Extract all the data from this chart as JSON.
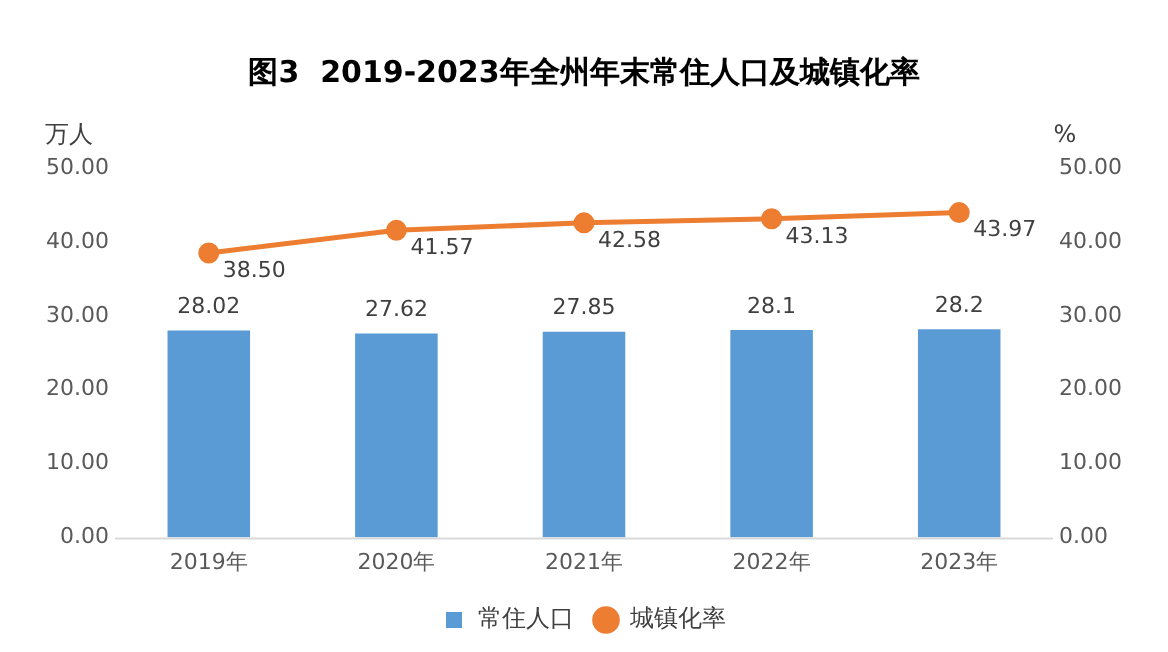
{
  "chart_data": {
    "type": "bar",
    "title": "图3  2019-2023年全州年末常住人口及城镇化率",
    "categories": [
      "2019年",
      "2020年",
      "2021年",
      "2022年",
      "2023年"
    ],
    "ylabel": "万人",
    "y2label": "%",
    "series": [
      {
        "name": "常住人口",
        "color": "#5b9bd5",
        "values": [
          28.02,
          27.62,
          27.85,
          28.1,
          28.2
        ],
        "value_labels": [
          "28.02",
          "27.62",
          "27.85",
          "28.1",
          "28.2"
        ]
      },
      {
        "name": "城镇化率",
        "type": "line",
        "axis": "y2",
        "color": "#ed7d31",
        "marker": "circle",
        "values": [
          38.5,
          41.57,
          42.58,
          43.13,
          43.97
        ],
        "value_labels": [
          "38.50",
          "41.57",
          "42.58",
          "43.13",
          "43.97"
        ]
      }
    ],
    "ylim": [
      0,
      50
    ],
    "yticks": [
      {
        "value": 0,
        "label": "0.00"
      },
      {
        "value": 10,
        "label": "10.00"
      },
      {
        "value": 20,
        "label": "20.00"
      },
      {
        "value": 30,
        "label": "30.00"
      },
      {
        "value": 40,
        "label": "40.00"
      },
      {
        "value": 50,
        "label": "50.00"
      }
    ],
    "y2lim": [
      0,
      50
    ],
    "y2ticks": [
      {
        "value": 0,
        "label": "0.00"
      },
      {
        "value": 10,
        "label": "10.00"
      },
      {
        "value": 20,
        "label": "20.00"
      },
      {
        "value": 30,
        "label": "30.00"
      },
      {
        "value": 40,
        "label": "40.00"
      },
      {
        "value": 50,
        "label": "50.00"
      }
    ],
    "grid": false,
    "legend": "bottom"
  }
}
